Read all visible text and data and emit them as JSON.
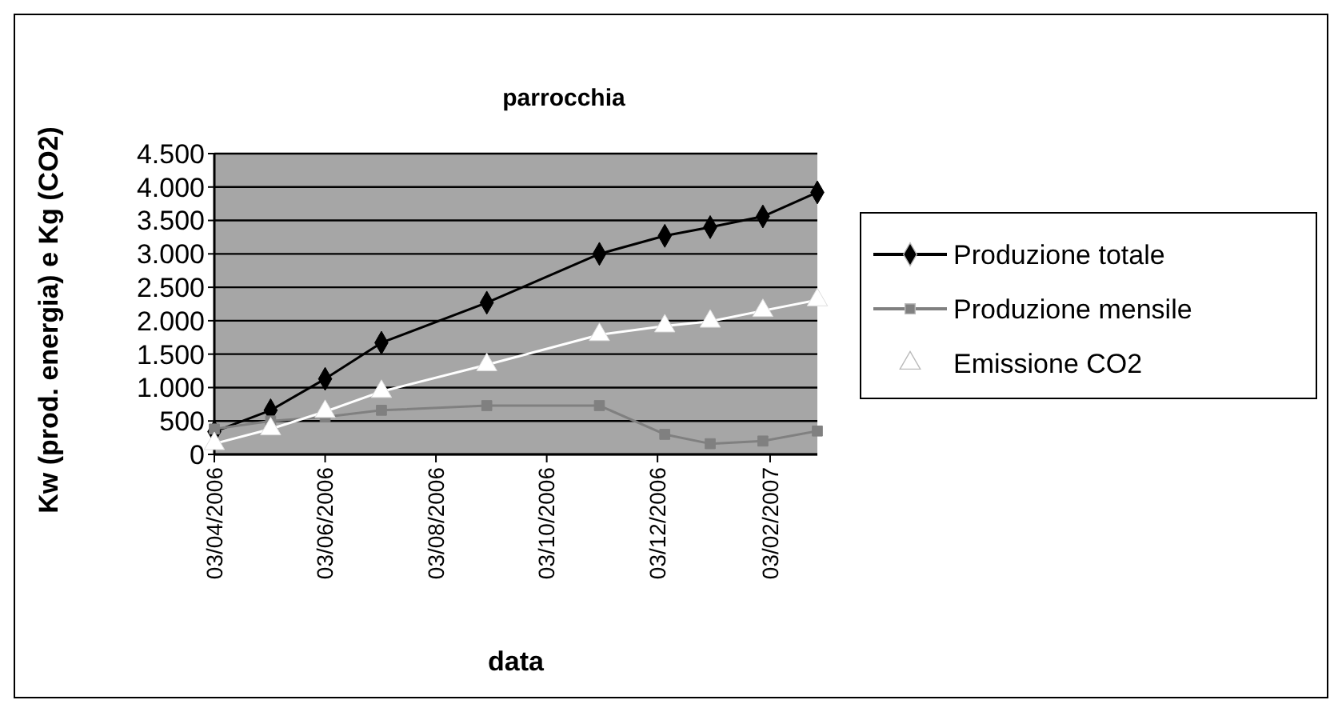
{
  "chart_data": {
    "type": "line",
    "title": "parrocchia",
    "xlabel": "data",
    "ylabel": "Kw (prod. energia) e Kg (CO2)",
    "x": [
      "2006-04-03",
      "2006-05-04",
      "2006-06-03",
      "2006-07-04",
      "2006-08-31",
      "2006-11-01",
      "2006-12-07",
      "2007-01-01",
      "2007-01-30",
      "2007-03-01"
    ],
    "series": [
      {
        "name": "Produzione totale",
        "color": "#000000",
        "marker": "diamond",
        "values": [
          340,
          660,
          1130,
          1670,
          2270,
          3000,
          3270,
          3400,
          3560,
          3920
        ]
      },
      {
        "name": "Produzione mensile",
        "color": "#808080",
        "marker": "square",
        "values": [
          380,
          500,
          560,
          660,
          730,
          730,
          300,
          160,
          200,
          350
        ]
      },
      {
        "name": "Emissione CO2",
        "color": "#ffffff",
        "marker": "triangle",
        "values": [
          160,
          380,
          640,
          940,
          1340,
          1790,
          1920,
          1990,
          2150,
          2310
        ]
      }
    ],
    "xlim": [
      "2006-04-03",
      "2007-03-01"
    ],
    "xticks": [
      {
        "value": "2006-04-03",
        "label": "03/04/2006"
      },
      {
        "value": "2006-06-03",
        "label": "03/06/2006"
      },
      {
        "value": "2006-08-03",
        "label": "03/08/2006"
      },
      {
        "value": "2006-10-03",
        "label": "03/10/2006"
      },
      {
        "value": "2006-12-03",
        "label": "03/12/2006"
      },
      {
        "value": "2007-02-03",
        "label": "03/02/2007"
      }
    ],
    "ylim": [
      0,
      4500
    ],
    "yticks": [
      0,
      500,
      {
        "value": 1000,
        "label": "1.000"
      },
      {
        "value": 1500,
        "label": "1.500"
      },
      {
        "value": 2000,
        "label": "2.000"
      },
      {
        "value": 2500,
        "label": "2.500"
      },
      {
        "value": 3000,
        "label": "3.000"
      },
      {
        "value": 3500,
        "label": "3.500"
      },
      {
        "value": 4000,
        "label": "4.000"
      },
      {
        "value": 4500,
        "label": "4.500"
      }
    ],
    "grid": "y",
    "legend": "right",
    "line_style": "solid"
  }
}
